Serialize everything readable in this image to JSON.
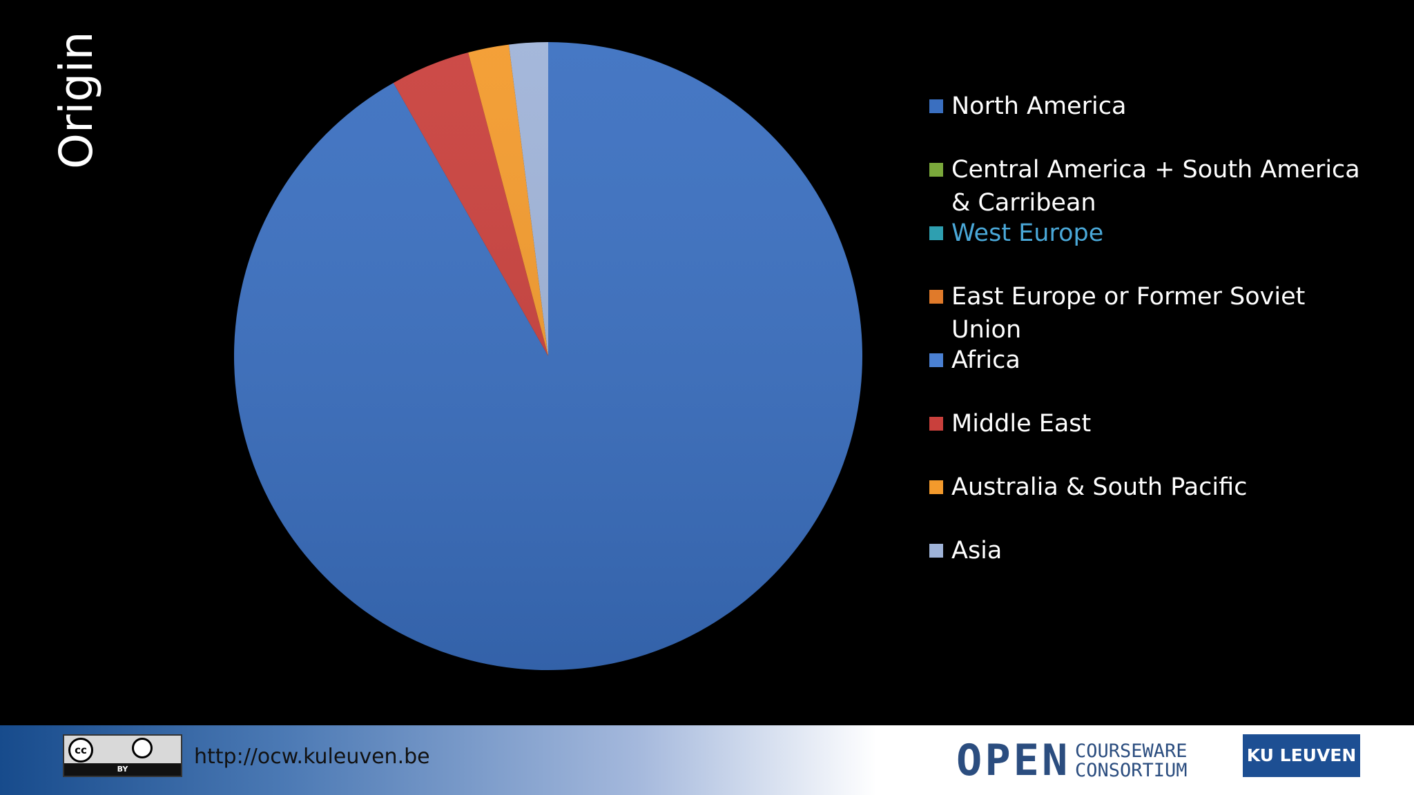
{
  "chart_data": {
    "type": "pie",
    "title": "Origin",
    "categories": [
      "North America",
      "Central America + South America & Carribean",
      "West Europe",
      "East Europe or Former Soviet Union",
      "Africa",
      "Middle East",
      "Australia & South Pacific",
      "Asia"
    ],
    "values": [
      91.8,
      0,
      0,
      0,
      0,
      4.1,
      2.1,
      2.0
    ],
    "colors": [
      "#3a6fc0",
      "#7aa83b",
      "#2e9fb0",
      "#e07a2a",
      "#4a80d2",
      "#c9403c",
      "#f39a2c",
      "#9fb3d8"
    ],
    "legend": "right"
  },
  "footer": {
    "url": "http://ocw.kuleuven.be",
    "cc": "cc",
    "by": "BY",
    "open": "OPEN",
    "courseware": "COURSEWARE",
    "consortium": "CONSORTIUM",
    "ku": "KU LEUVEN"
  }
}
